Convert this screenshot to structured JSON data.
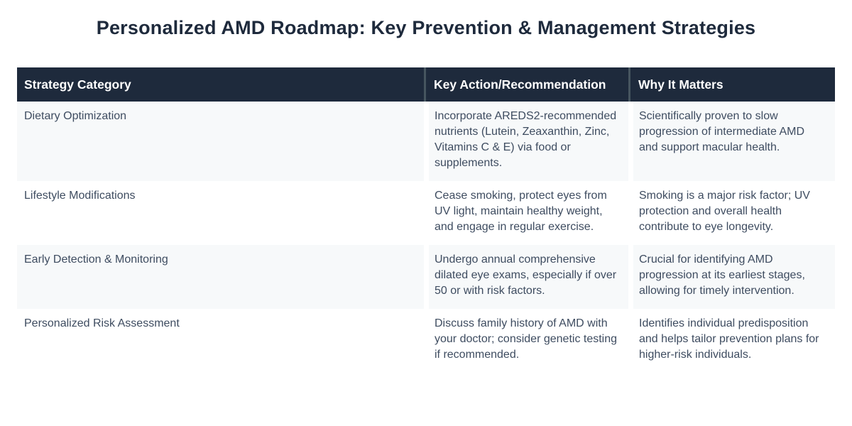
{
  "page": {
    "title": "Personalized AMD Roadmap: Key Prevention & Management Strategies"
  },
  "table": {
    "columns": {
      "category": "Strategy Category",
      "action": "Key Action/Recommendation",
      "why": "Why It Matters"
    },
    "rows": [
      {
        "category": "Dietary Optimization",
        "action": "Incorporate AREDS2-recommended nutrients (Lutein, Zeaxanthin, Zinc, Vitamins C & E) via food or supplements.",
        "why": "Scientifically proven to slow progression of intermediate AMD and support macular health."
      },
      {
        "category": "Lifestyle Modifications",
        "action": "Cease smoking, protect eyes from UV light, maintain healthy weight, and engage in regular exercise.",
        "why": "Smoking is a major risk factor; UV protection and overall health contribute to eye longevity."
      },
      {
        "category": "Early Detection & Monitoring",
        "action": "Undergo annual comprehensive dilated eye exams, especially if over 50 or with risk factors.",
        "why": "Crucial for identifying AMD progression at its earliest stages, allowing for timely intervention."
      },
      {
        "category": "Personalized Risk Assessment",
        "action": "Discuss family history of AMD with your doctor; consider genetic testing if recommended.",
        "why": "Identifies individual predisposition and helps tailor prevention plans for higher-risk individuals."
      }
    ]
  },
  "colors": {
    "header_bg": "#1e2a3c",
    "header_text": "#ffffff",
    "header_divider": "#46555f",
    "title_text": "#1e2a3c",
    "body_text": "#3e4c60",
    "row_alt_bg": "#f7f9fa",
    "row_bg": "#ffffff",
    "page_bg": "#ffffff"
  }
}
